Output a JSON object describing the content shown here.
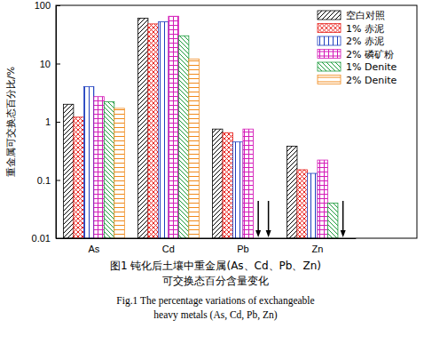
{
  "chart_data": {
    "type": "bar",
    "log": "y",
    "y_label": "重金属可交换态百分比/%",
    "caption": [
      "图1 钝化后土壤中重金属(As、Cd、Pb、Zn)",
      "可交换态百分含量变化",
      "Fig.1 The percentage variations of exchangeable",
      "heavy metals (As, Cd, Pb, Zn)"
    ],
    "categories": [
      "As",
      "Cd",
      "Pb",
      "Zn"
    ],
    "series": [
      {
        "name": "空白对照",
        "color": "#000000",
        "values": [
          2.0,
          60,
          0.75,
          0.38
        ]
      },
      {
        "name": "1% 赤泥",
        "color": "#e8231e",
        "values": [
          1.2,
          48,
          0.65,
          0.15
        ]
      },
      {
        "name": "2% 赤泥",
        "color": "#1f3fbf",
        "values": [
          4.0,
          52,
          0.45,
          0.13
        ]
      },
      {
        "name": "2% 磷矿粉",
        "color": "#d41bb8",
        "values": [
          2.7,
          65,
          0.75,
          0.22
        ]
      },
      {
        "name": "1% Denite",
        "color": "#1a9a3a",
        "values": [
          2.2,
          30,
          null,
          0.04
        ]
      },
      {
        "name": "2% Denite",
        "color": "#f08a1c",
        "values": [
          1.7,
          12,
          null,
          null
        ]
      }
    ],
    "ylim": [
      0.01,
      100
    ],
    "yticks": [
      0.01,
      0.1,
      1,
      10,
      100
    ],
    "legend": "upper right",
    "grid": false
  }
}
